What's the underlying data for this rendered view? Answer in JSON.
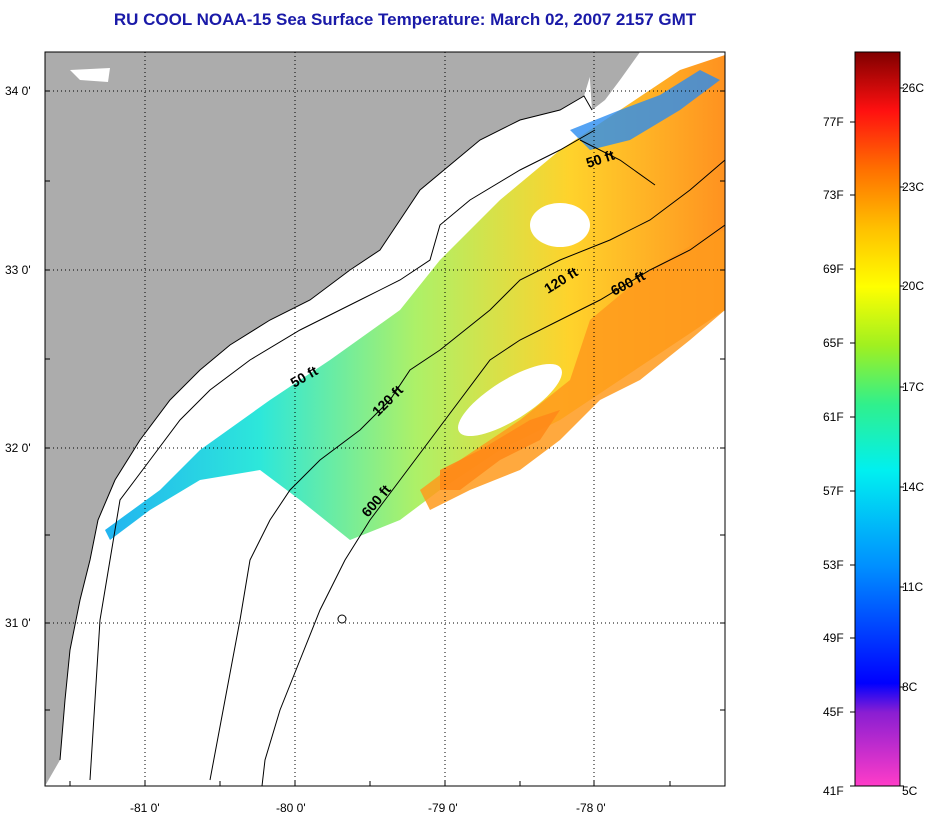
{
  "title": "RU COOL  NOAA-15  Sea Surface Temperature:  March 02, 2007 2157 GMT",
  "map": {
    "lat_labels": [
      "34 0'",
      "33 0'",
      "32 0'",
      "31 0'"
    ],
    "lon_labels": [
      "-81 0'",
      "-80 0'",
      "-79 0'",
      "-78 0'"
    ],
    "isobaths": [
      "50 ft",
      "50 ft",
      "120 ft",
      "120 ft",
      "600 ft",
      "600 ft"
    ],
    "colors": {
      "land": "#acacac",
      "cloud": "#ffffff"
    }
  },
  "colorbar": {
    "fahrenheit": [
      "77F",
      "73F",
      "69F",
      "65F",
      "61F",
      "57F",
      "53F",
      "49F",
      "45F",
      "41F"
    ],
    "celsius": [
      "26C",
      "23C",
      "20C",
      "17C",
      "14C",
      "11C",
      "8C",
      "5C"
    ]
  }
}
